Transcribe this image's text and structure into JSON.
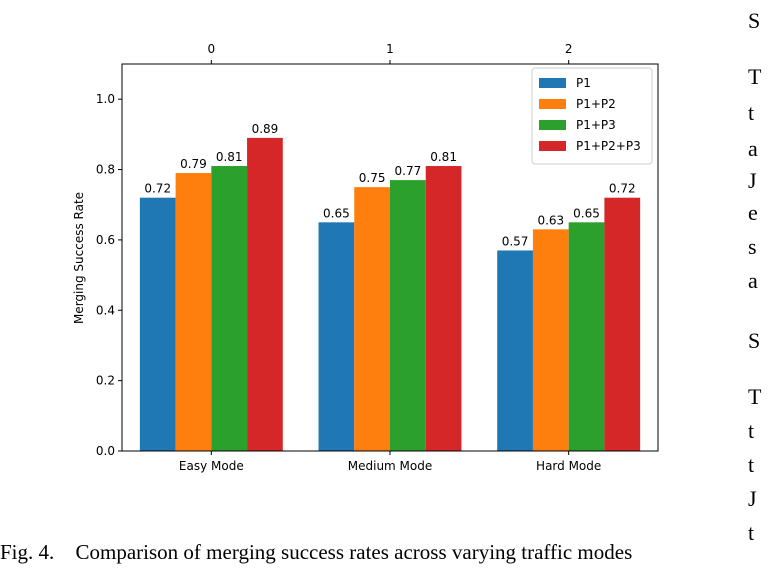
{
  "chart_data": {
    "type": "bar",
    "categories": [
      "Easy Mode",
      "Medium Mode",
      "Hard Mode"
    ],
    "top_ticks": [
      "0",
      "1",
      "2"
    ],
    "series": [
      {
        "name": "P1",
        "color": "#1f77b4",
        "values": [
          0.72,
          0.65,
          0.57
        ]
      },
      {
        "name": "P1+P2",
        "color": "#ff7f0e",
        "values": [
          0.79,
          0.75,
          0.63
        ]
      },
      {
        "name": "P1+P3",
        "color": "#2ca02c",
        "values": [
          0.81,
          0.77,
          0.65
        ]
      },
      {
        "name": "P1+P2+P3",
        "color": "#d62728",
        "values": [
          0.89,
          0.81,
          0.72
        ]
      }
    ],
    "value_labels": [
      [
        "0.72",
        "0.65",
        "0.57"
      ],
      [
        "0.79",
        "0.75",
        "0.63"
      ],
      [
        "0.81",
        "0.77",
        "0.65"
      ],
      [
        "0.89",
        "0.81",
        "0.72"
      ]
    ],
    "ylabel": "Merging Success Rate",
    "ylim": [
      0,
      1.1
    ],
    "yticks": [
      "0.0",
      "0.2",
      "0.4",
      "0.6",
      "0.8",
      "1.0"
    ],
    "grid": false,
    "legend_position": "top-right"
  },
  "caption": {
    "number": "Fig. 4.",
    "text": "Comparison of merging success rates across varying traffic modes"
  },
  "side_text": [
    "S",
    "T",
    "t",
    "a",
    "J",
    "e",
    "s",
    "a",
    "S",
    "T",
    "t",
    "t",
    "J",
    "t"
  ]
}
